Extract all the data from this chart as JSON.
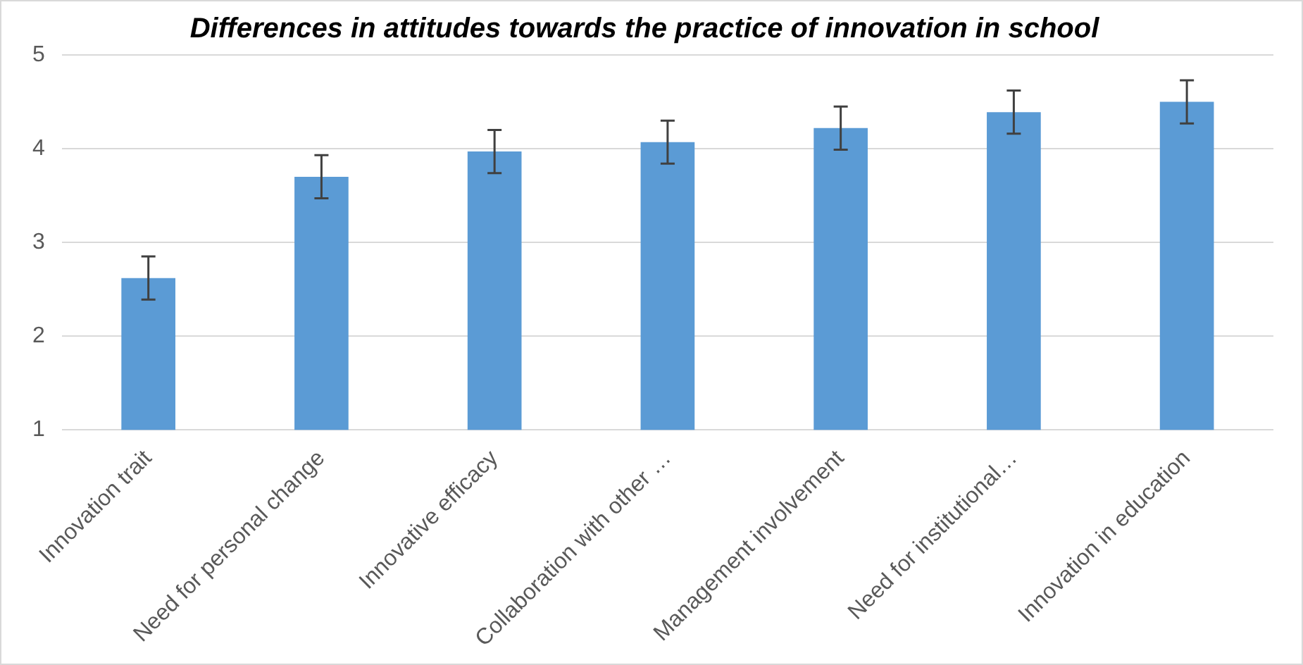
{
  "chart_data": {
    "type": "bar",
    "title": "Differences in attitudes towards the practice of innovation in school",
    "categories": [
      "Innovation trait",
      "Need for personal change",
      "Innovative efficacy",
      "Collaboration with other …",
      "Management involvement",
      "Need for institutional…",
      "Innovation in education"
    ],
    "values": [
      2.62,
      3.7,
      3.97,
      4.07,
      4.22,
      4.39,
      4.5
    ],
    "errors": [
      0.23,
      0.23,
      0.23,
      0.23,
      0.23,
      0.23,
      0.23
    ],
    "color": "#5b9bd5",
    "ylim": [
      1,
      5
    ],
    "yticks": [
      1,
      2,
      3,
      4,
      5
    ],
    "grid": "y",
    "legend": false
  }
}
